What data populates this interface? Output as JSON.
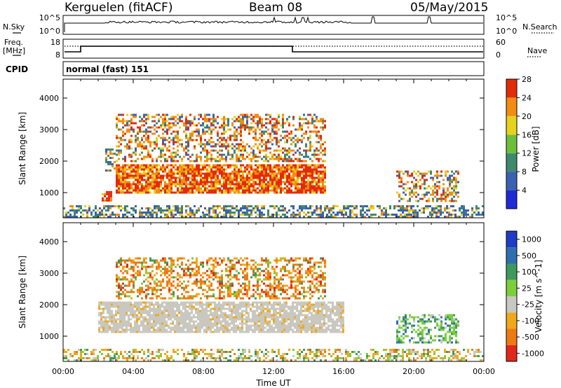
{
  "header": {
    "station": "Kerguelen (fitACF)",
    "beam": "Beam 08",
    "date": "05/May/2015",
    "cpid_label": "CPID",
    "cpid_value": "normal (fast) 151"
  },
  "top_panels": {
    "nsky_label": "N.Sky",
    "nsearch_label": "N.Search",
    "nsky_ticks": [
      "10^5",
      "10^0"
    ],
    "nsky_ticks_right": [
      "10^5",
      "10^0"
    ],
    "freq_label_1": "Freq.",
    "freq_label_2": "[MHz]",
    "freq_ticks": [
      "18",
      "8"
    ],
    "nave_label": "Nave",
    "nave_ticks": [
      "60",
      "0"
    ]
  },
  "chart_data": [
    {
      "type": "heatmap",
      "name": "power",
      "ylabel": "Slant Range [km]",
      "xlabel": "",
      "ylim": [
        200,
        4600
      ],
      "xlim": [
        0,
        24
      ],
      "yticks": [
        1000,
        2000,
        3000,
        4000
      ],
      "colorbar": {
        "label": "Power [dB]",
        "ticks": [
          "4",
          "8",
          "12",
          "16",
          "20",
          "24",
          "28"
        ],
        "colors": [
          "#1f2bd6",
          "#3a62b0",
          "#3f8a6e",
          "#6cbf3a",
          "#e6d21a",
          "#f28c12",
          "#e42a0c"
        ]
      },
      "regions": [
        {
          "t": [
            0.0,
            24.0
          ],
          "r": [
            200,
            600
          ],
          "level": "low"
        },
        {
          "t": [
            2.2,
            2.8
          ],
          "r": [
            750,
            1050
          ],
          "level": "high"
        },
        {
          "t": [
            2.4,
            3.0
          ],
          "r": [
            1700,
            2400
          ],
          "level": "mid"
        },
        {
          "t": [
            3.0,
            15.0
          ],
          "r": [
            1000,
            1900
          ],
          "level": "high"
        },
        {
          "t": [
            3.0,
            15.0
          ],
          "r": [
            2000,
            3500
          ],
          "level": "mixed"
        },
        {
          "t": [
            19.0,
            22.5
          ],
          "r": [
            750,
            1700
          ],
          "level": "mixed"
        }
      ]
    },
    {
      "type": "heatmap",
      "name": "velocity",
      "ylabel": "Slant Range [km]",
      "xlabel": "Time UT",
      "ylim": [
        200,
        4600
      ],
      "xlim": [
        0,
        24
      ],
      "yticks": [
        1000,
        2000,
        3000,
        4000
      ],
      "xticks": [
        "00:00",
        "04:00",
        "08:00",
        "12:00",
        "16:00",
        "20:00",
        "00:00"
      ],
      "colorbar": {
        "label": "Velocity [m s^-1]",
        "ticks": [
          "1000",
          "500",
          "100",
          "25",
          "-25",
          "-100",
          "-500",
          "-1000"
        ],
        "colors": [
          "#1e3cc8",
          "#2f6fb0",
          "#3d9a5c",
          "#7bcf3a",
          "#c8c8c0",
          "#f0a81c",
          "#ee7a12",
          "#e0281a"
        ]
      },
      "regions": [
        {
          "t": [
            0.0,
            24.0
          ],
          "r": [
            200,
            600
          ],
          "level": "mixed"
        },
        {
          "t": [
            2.0,
            16.0
          ],
          "r": [
            1100,
            2100
          ],
          "level": "ground"
        },
        {
          "t": [
            3.0,
            15.0
          ],
          "r": [
            2200,
            3500
          ],
          "level": "negative"
        },
        {
          "t": [
            19.0,
            22.5
          ],
          "r": [
            800,
            1700
          ],
          "level": "positive"
        }
      ]
    }
  ]
}
